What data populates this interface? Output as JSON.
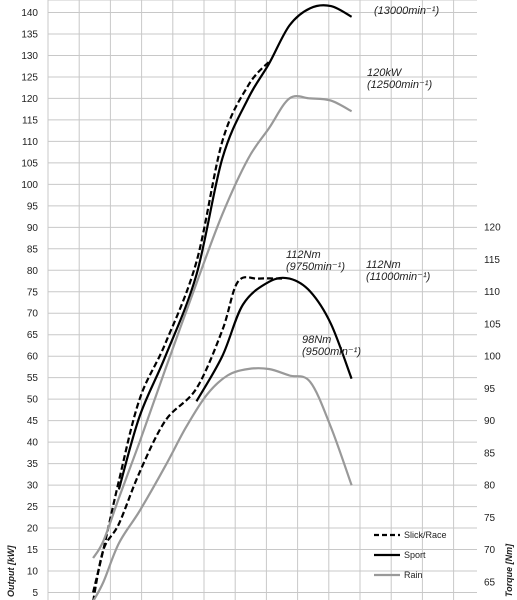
{
  "chart_data": {
    "type": "line",
    "grid": true,
    "legend_position": "bottom-right",
    "xlabel": "",
    "ylabel": "Output [kW]",
    "y2label": "Torque [Nm]",
    "ylim": [
      5,
      140
    ],
    "yticks": [
      5,
      10,
      15,
      20,
      25,
      30,
      35,
      40,
      45,
      50,
      55,
      60,
      65,
      70,
      75,
      80,
      85,
      90,
      95,
      100,
      105,
      110,
      115,
      120,
      125,
      130,
      135,
      140
    ],
    "y2lim": [
      65,
      120
    ],
    "y2ticks": [
      65,
      70,
      75,
      80,
      85,
      90,
      95,
      100,
      105,
      110,
      115,
      120
    ],
    "colors": {
      "slick_race": "#000000",
      "sport": "#000000",
      "rain": "#999999",
      "grid": "#c8c8c8"
    },
    "series": [
      {
        "name": "Slick/Race",
        "quantity": "power",
        "axis": "left",
        "style": "dashed",
        "x": [
          0.18,
          0.2,
          0.23,
          0.27,
          0.32,
          0.38,
          0.43,
          0.48,
          0.52,
          0.56,
          0.6,
          0.64,
          0.68
        ],
        "values": [
          5,
          15,
          31,
          50,
          63,
          82,
          110,
          123,
          128.5,
          null,
          null,
          null,
          null
        ]
      },
      {
        "name": "Sport",
        "quantity": "power",
        "axis": "left",
        "style": "solid",
        "x": [
          0.18,
          0.2,
          0.23,
          0.27,
          0.32,
          0.38,
          0.43,
          0.48,
          0.52,
          0.56,
          0.6,
          0.64,
          0.68
        ],
        "values": [
          null,
          null,
          29,
          46,
          60,
          79,
          106,
          120,
          128,
          137,
          141,
          141.5,
          139
        ]
      },
      {
        "name": "Rain",
        "quantity": "power",
        "axis": "left",
        "style": "solid",
        "x": [
          0.18,
          0.2,
          0.23,
          0.27,
          0.32,
          0.38,
          0.43,
          0.48,
          0.52,
          0.56,
          0.6,
          0.64,
          0.68
        ],
        "values": [
          13,
          17,
          27,
          40,
          57,
          77,
          93,
          106,
          113,
          120,
          120,
          119.5,
          117
        ]
      },
      {
        "name": "Slick/Race",
        "quantity": "torque",
        "axis": "right",
        "style": "dashed",
        "x": [
          0.18,
          0.2,
          0.23,
          0.27,
          0.32,
          0.38,
          0.43,
          0.46,
          0.5,
          0.55
        ],
        "values": [
          62,
          70,
          74,
          82,
          90,
          95,
          104,
          111.5,
          112,
          112
        ]
      },
      {
        "name": "Sport",
        "quantity": "torque",
        "axis": "right",
        "style": "solid",
        "x": [
          0.38,
          0.43,
          0.47,
          0.52,
          0.56,
          0.6,
          0.64,
          0.68
        ],
        "values": [
          93,
          100,
          108,
          111.5,
          112,
          110,
          105,
          96.5
        ]
      },
      {
        "name": "Rain",
        "quantity": "torque",
        "axis": "right",
        "style": "solid",
        "x": [
          0.18,
          0.2,
          0.23,
          0.27,
          0.32,
          0.36,
          0.4,
          0.44,
          0.48,
          0.52,
          0.56,
          0.6,
          0.64,
          0.68
        ],
        "values": [
          62,
          65,
          71,
          76,
          83,
          89,
          94,
          97,
          98,
          98,
          97,
          96,
          89,
          80
        ]
      }
    ],
    "annotations": [
      {
        "label": "120kW",
        "sub": "(12500min⁻¹)"
      },
      {
        "label": "112Nm",
        "sub": "(9750min⁻¹)"
      },
      {
        "label": "112Nm",
        "sub": "(11000min⁻¹)"
      },
      {
        "label": "98Nm",
        "sub": "(9500min⁻¹)"
      },
      {
        "label": "",
        "sub": "(13000min⁻¹)"
      }
    ]
  }
}
